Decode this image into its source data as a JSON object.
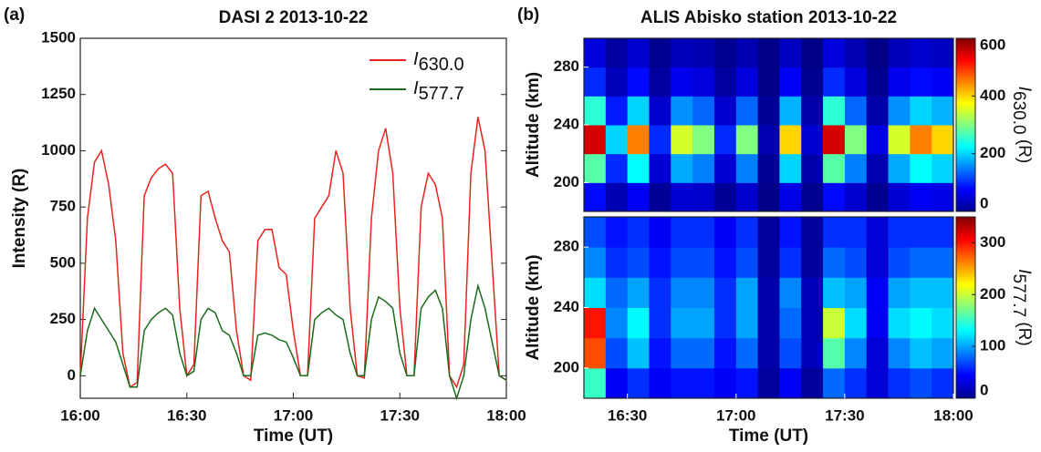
{
  "chart_data": [
    {
      "type": "line",
      "panel_label": "(a)",
      "title": "DASI 2 2013-10-22",
      "xlabel": "Time (UT)",
      "ylabel": "Intensity (R)",
      "x": [
        "16:00",
        "16:02",
        "16:04",
        "16:06",
        "16:08",
        "16:10",
        "16:12",
        "16:14",
        "16:16",
        "16:18",
        "16:20",
        "16:22",
        "16:24",
        "16:26",
        "16:28",
        "16:30",
        "16:32",
        "16:34",
        "16:36",
        "16:38",
        "16:40",
        "16:42",
        "16:44",
        "16:46",
        "16:48",
        "16:50",
        "16:52",
        "16:54",
        "16:56",
        "16:58",
        "17:00",
        "17:02",
        "17:04",
        "17:06",
        "17:08",
        "17:10",
        "17:12",
        "17:14",
        "17:16",
        "17:18",
        "17:20",
        "17:22",
        "17:24",
        "17:26",
        "17:28",
        "17:30",
        "17:32",
        "17:34",
        "17:36",
        "17:38",
        "17:40",
        "17:42",
        "17:44",
        "17:46",
        "17:48",
        "17:50",
        "17:52",
        "17:54",
        "17:56",
        "17:58",
        "18:00"
      ],
      "series": [
        {
          "name": "I",
          "subscript": "630.0",
          "color": "#e8231e",
          "values": [
            0,
            700,
            950,
            1000,
            850,
            600,
            100,
            -50,
            -30,
            800,
            880,
            920,
            940,
            900,
            300,
            0,
            50,
            800,
            820,
            700,
            600,
            550,
            200,
            0,
            -20,
            600,
            650,
            650,
            480,
            450,
            200,
            0,
            0,
            700,
            750,
            800,
            1000,
            900,
            300,
            0,
            -10,
            700,
            1000,
            1100,
            900,
            300,
            0,
            0,
            750,
            900,
            850,
            700,
            0,
            -50,
            50,
            900,
            1150,
            1000,
            500,
            0,
            -20
          ]
        },
        {
          "name": "I",
          "subscript": "577.7",
          "color": "#1c6b1c",
          "values": [
            0,
            200,
            300,
            250,
            200,
            150,
            50,
            -50,
            -50,
            200,
            250,
            280,
            300,
            270,
            100,
            0,
            20,
            250,
            300,
            280,
            200,
            180,
            100,
            0,
            0,
            180,
            190,
            180,
            160,
            150,
            80,
            0,
            0,
            250,
            280,
            300,
            270,
            250,
            100,
            0,
            0,
            250,
            350,
            330,
            300,
            100,
            0,
            0,
            300,
            350,
            380,
            300,
            0,
            -100,
            0,
            250,
            400,
            300,
            150,
            0,
            -20
          ]
        }
      ],
      "xlim": [
        "16:00",
        "18:00"
      ],
      "xticks": [
        "16:00",
        "16:30",
        "17:00",
        "17:30",
        "18:00"
      ],
      "ylim": [
        -100,
        1500
      ],
      "yticks": [
        0,
        250,
        500,
        750,
        1000,
        1250,
        1500
      ],
      "legend": "upper right"
    },
    {
      "type": "heatmap",
      "panel_label": "(b)",
      "title": "ALIS Abisko station 2013-10-22",
      "ylabel": "Altitude (km)",
      "x": [
        "16:18",
        "16:24",
        "16:30",
        "16:36",
        "16:42",
        "16:48",
        "16:54",
        "17:00",
        "17:06",
        "17:12",
        "17:18",
        "17:24",
        "17:30",
        "17:36",
        "17:42",
        "17:48",
        "17:54"
      ],
      "y": [
        190,
        210,
        230,
        250,
        270,
        290
      ],
      "values": [
        [
          80,
          30,
          70,
          15,
          50,
          45,
          15,
          45,
          5,
          60,
          10,
          80,
          45,
          10,
          50,
          70,
          60
        ],
        [
          275,
          100,
          225,
          50,
          175,
          150,
          50,
          150,
          15,
          200,
          25,
          275,
          150,
          30,
          175,
          225,
          200
        ],
        [
          550,
          200,
          450,
          100,
          350,
          300,
          100,
          300,
          30,
          400,
          50,
          550,
          300,
          60,
          350,
          450,
          400
        ],
        [
          250,
          90,
          200,
          45,
          160,
          135,
          45,
          135,
          15,
          180,
          25,
          250,
          135,
          25,
          160,
          200,
          180
        ],
        [
          100,
          35,
          80,
          20,
          65,
          55,
          20,
          55,
          5,
          70,
          10,
          100,
          55,
          10,
          65,
          80,
          70
        ],
        [
          55,
          20,
          45,
          10,
          35,
          30,
          10,
          30,
          5,
          40,
          5,
          55,
          30,
          5,
          35,
          45,
          40
        ]
      ],
      "xlim": [
        "16:18",
        "18:00"
      ],
      "ylim": [
        180,
        300
      ],
      "yticks": [
        200,
        240,
        280
      ],
      "zlim": [
        0,
        600
      ],
      "zticks": [
        0,
        200,
        400,
        600
      ],
      "colormap": "jet",
      "colorbar_label": {
        "symbol": "I",
        "subscript": "630.0",
        "unit": "(R)"
      }
    },
    {
      "type": "heatmap",
      "xlabel": "Time (UT)",
      "ylabel": "Altitude (km)",
      "x": [
        "16:18",
        "16:24",
        "16:30",
        "16:36",
        "16:42",
        "16:48",
        "16:54",
        "17:00",
        "17:06",
        "17:12",
        "17:18",
        "17:24",
        "17:30",
        "17:36",
        "17:42",
        "17:48",
        "17:54"
      ],
      "y": [
        190,
        210,
        230,
        250,
        270,
        290
      ],
      "values": [
        [
          150,
          40,
          60,
          40,
          50,
          50,
          40,
          50,
          10,
          40,
          10,
          80,
          60,
          30,
          60,
          70,
          60
        ],
        [
          280,
          70,
          110,
          50,
          80,
          80,
          50,
          80,
          15,
          70,
          20,
          160,
          90,
          30,
          90,
          110,
          100
        ],
        [
          300,
          90,
          130,
          60,
          100,
          100,
          60,
          100,
          15,
          80,
          20,
          200,
          120,
          40,
          120,
          130,
          120
        ],
        [
          120,
          80,
          100,
          60,
          90,
          90,
          60,
          100,
          15,
          90,
          20,
          110,
          100,
          40,
          100,
          110,
          110
        ],
        [
          90,
          60,
          70,
          50,
          70,
          70,
          50,
          70,
          10,
          60,
          10,
          80,
          70,
          30,
          70,
          80,
          80
        ],
        [
          70,
          50,
          60,
          40,
          60,
          60,
          40,
          60,
          10,
          50,
          10,
          60,
          60,
          30,
          60,
          60,
          60
        ]
      ],
      "xlim": [
        "16:18",
        "18:00"
      ],
      "xticks": [
        "16:30",
        "17:00",
        "17:30",
        "18:00"
      ],
      "ylim": [
        180,
        300
      ],
      "yticks": [
        200,
        240,
        280
      ],
      "zlim": [
        0,
        350
      ],
      "zticks": [
        0,
        100,
        200,
        300
      ],
      "colormap": "jet",
      "colorbar_label": {
        "symbol": "I",
        "subscript": "577.7",
        "unit": "(R)"
      }
    }
  ]
}
